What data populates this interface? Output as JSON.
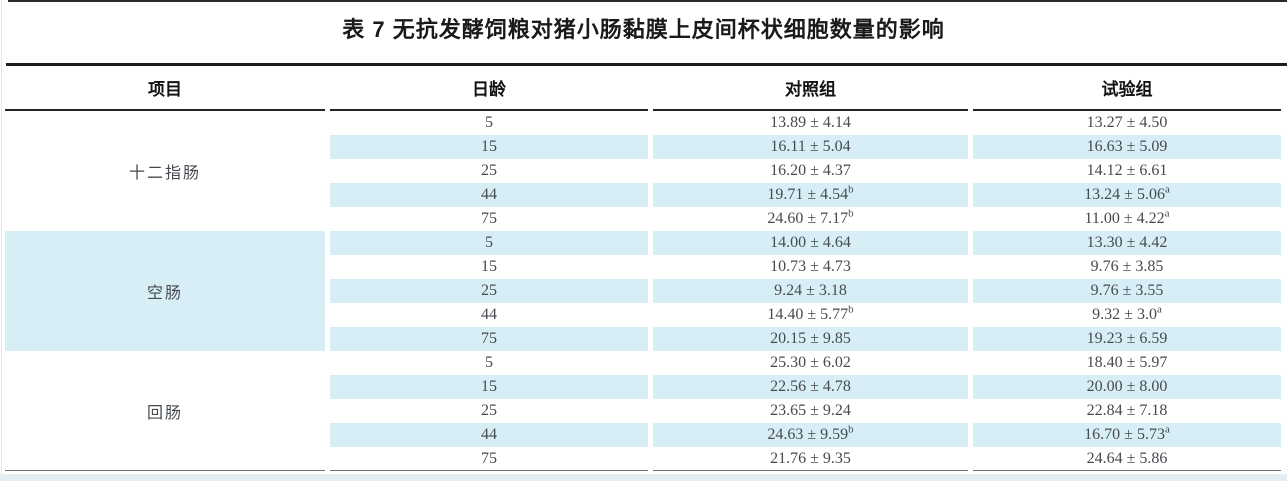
{
  "title": "表 7 无抗发酵饲粮对猪小肠黏膜上皮间杯状细胞数量的影响",
  "colors": {
    "stripe": "#d8eef7",
    "strip_bottom": "#e3edf2",
    "heading_ink": "#1a1a1a",
    "data_ink": "#454a4f"
  },
  "table": {
    "columns": [
      "项目",
      "日龄",
      "对照组",
      "试验组"
    ],
    "groups": [
      {
        "name": "十二指肠",
        "shaded": false,
        "rows": [
          {
            "age": "5",
            "control": "13.89 ± 4.14",
            "control_sup": "",
            "test": "13.27 ± 4.50",
            "test_sup": ""
          },
          {
            "age": "15",
            "control": "16.11 ± 5.04",
            "control_sup": "",
            "test": "16.63 ± 5.09",
            "test_sup": ""
          },
          {
            "age": "25",
            "control": "16.20 ± 4.37",
            "control_sup": "",
            "test": "14.12 ± 6.61",
            "test_sup": ""
          },
          {
            "age": "44",
            "control": "19.71 ± 4.54",
            "control_sup": "b",
            "test": "13.24 ± 5.06",
            "test_sup": "a"
          },
          {
            "age": "75",
            "control": "24.60 ± 7.17",
            "control_sup": "b",
            "test": "11.00 ± 4.22",
            "test_sup": "a"
          }
        ]
      },
      {
        "name": "空肠",
        "shaded": true,
        "rows": [
          {
            "age": "5",
            "control": "14.00 ± 4.64",
            "control_sup": "",
            "test": "13.30 ± 4.42",
            "test_sup": ""
          },
          {
            "age": "15",
            "control": "10.73 ± 4.73",
            "control_sup": "",
            "test": "9.76 ± 3.85",
            "test_sup": ""
          },
          {
            "age": "25",
            "control": "9.24 ± 3.18",
            "control_sup": "",
            "test": "9.76 ± 3.55",
            "test_sup": ""
          },
          {
            "age": "44",
            "control": "14.40 ± 5.77",
            "control_sup": "b",
            "test": "9.32 ± 3.0",
            "test_sup": "a"
          },
          {
            "age": "75",
            "control": "20.15 ± 9.85",
            "control_sup": "",
            "test": "19.23 ± 6.59",
            "test_sup": ""
          }
        ]
      },
      {
        "name": "回肠",
        "shaded": false,
        "rows": [
          {
            "age": "5",
            "control": "25.30 ± 6.02",
            "control_sup": "",
            "test": "18.40 ± 5.97",
            "test_sup": ""
          },
          {
            "age": "15",
            "control": "22.56 ± 4.78",
            "control_sup": "",
            "test": "20.00 ± 8.00",
            "test_sup": ""
          },
          {
            "age": "25",
            "control": "23.65 ± 9.24",
            "control_sup": "",
            "test": "22.84 ± 7.18",
            "test_sup": ""
          },
          {
            "age": "44",
            "control": "24.63 ± 9.59",
            "control_sup": "b",
            "test": "16.70 ± 5.73",
            "test_sup": "a"
          },
          {
            "age": "75",
            "control": "21.76 ± 9.35",
            "control_sup": "",
            "test": "24.64 ± 5.86",
            "test_sup": ""
          }
        ]
      }
    ]
  }
}
